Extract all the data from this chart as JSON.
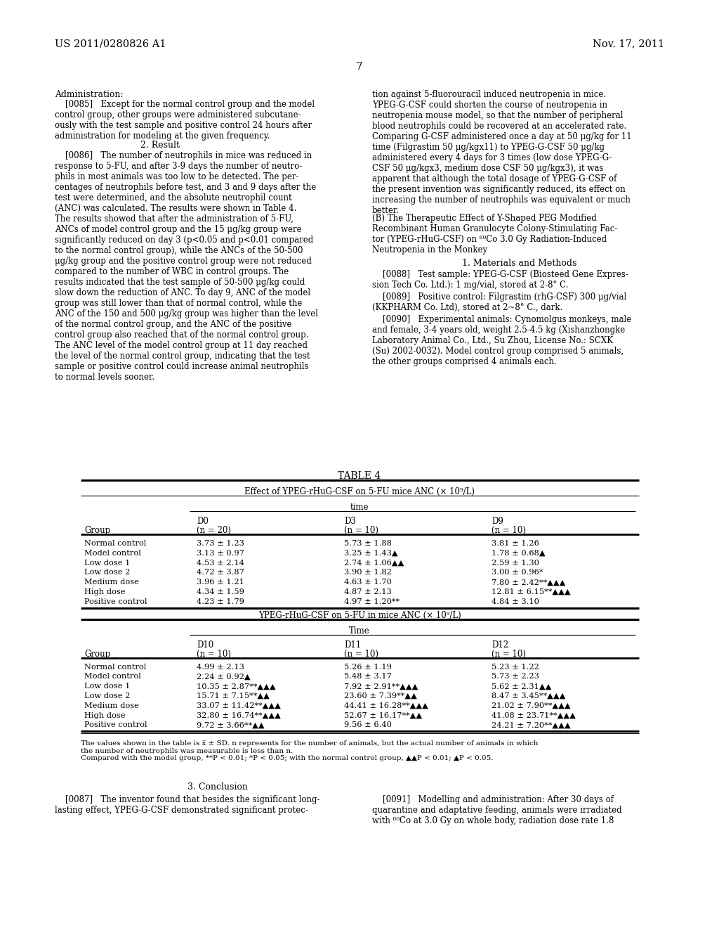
{
  "patent_number": "US 2011/0280826 A1",
  "patent_date": "Nov. 17, 2011",
  "page_number": "7",
  "background_color": "#ffffff",
  "table4_title": "TABLE 4",
  "table4_subtitle": "Effect of YPEG-rHuG-CSF on 5-FU mice ANC (× 10⁹/L)",
  "table4_time_label": "time",
  "table4_rows": [
    [
      "Normal control",
      "3.73 ± 1.23",
      "5.73 ± 1.88",
      "3.81 ± 1.26"
    ],
    [
      "Model control",
      "3.13 ± 0.97",
      "3.25 ± 1.43▲",
      "1.78 ± 0.68▲"
    ],
    [
      "Low dose 1",
      "4.53 ± 2.14",
      "2.74 ± 1.06▲▲",
      "2.59 ± 1.30"
    ],
    [
      "Low dose 2",
      "4.72 ± 3.87",
      "3.90 ± 1.82",
      "3.00 ± 0.96*"
    ],
    [
      "Medium dose",
      "3.96 ± 1.21",
      "4.63 ± 1.70",
      "7.80 ± 2.42**▲▲▲"
    ],
    [
      "High dose",
      "4.34 ± 1.59",
      "4.87 ± 2.13",
      "12.81 ± 6.15**▲▲▲"
    ],
    [
      "Positive control",
      "4.23 ± 1.79",
      "4.97 ± 1.20**",
      "4.84 ± 3.10"
    ]
  ],
  "table4b_subtitle": "YPEG-rHuG-CSF on 5-FU in mice ANC (× 10⁹/L)",
  "table4b_time_label": "Time",
  "table4b_rows": [
    [
      "Normal control",
      "4.99 ± 2.13",
      "5.26 ± 1.19",
      "5.23 ± 1.22"
    ],
    [
      "Model control",
      "2.24 ± 0.92▲",
      "5.48 ± 3.17",
      "5.73 ± 2.23"
    ],
    [
      "Low dose 1",
      "10.35 ± 2.87**▲▲▲",
      "7.92 ± 2.91**▲▲▲",
      "5.62 ± 2.31▲▲"
    ],
    [
      "Low dose 2",
      "15.71 ± 7.15**▲▲",
      "23.60 ± 7.39**▲▲",
      "8.47 ± 3.45**▲▲▲"
    ],
    [
      "Medium dose",
      "33.07 ± 11.42**▲▲▲",
      "44.41 ± 16.28**▲▲▲",
      "21.02 ± 7.90**▲▲▲"
    ],
    [
      "High dose",
      "32.80 ± 16.74**▲▲▲",
      "52.67 ± 16.17**▲▲",
      "41.08 ± 23.71**▲▲▲"
    ],
    [
      "Positive control",
      "9.72 ± 3.66**▲▲",
      "9.56 ± 6.40",
      "24.21 ± 7.20**▲▲▲"
    ]
  ]
}
